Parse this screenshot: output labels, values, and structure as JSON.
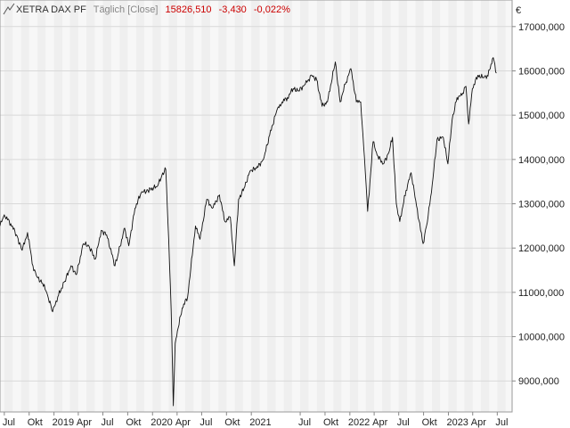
{
  "header": {
    "symbol": "XETRA DAX PF",
    "interval": "Täglich [Close]",
    "last": "15826,510",
    "change": "-3,430",
    "change_pct": "-0,022%"
  },
  "colors": {
    "background": "#ffffff",
    "band_dark": "#efefef",
    "band_light": "#f7f7f7",
    "grid": "#d9d9d9",
    "line": "#111111",
    "negative": "#cc0000",
    "muted_text": "#888888"
  },
  "chart_data": {
    "type": "line",
    "title": "XETRA DAX PF",
    "currency": "€",
    "ylim": [
      8300,
      17600
    ],
    "yticks": [
      9000,
      10000,
      11000,
      12000,
      13000,
      14000,
      15000,
      16000,
      17000
    ],
    "ytick_labels": [
      "9000,000",
      "10000,000",
      "11000,000",
      "12000,000",
      "13000,000",
      "14000,000",
      "15000,000",
      "16000,000",
      "17000,000"
    ],
    "xlim": [
      "2018-06-15",
      "2023-08-25"
    ],
    "month_bands": [
      "2018-07-01",
      "2018-08-01",
      "2018-09-01",
      "2018-10-01",
      "2018-11-01",
      "2018-12-01",
      "2019-01-01",
      "2019-02-01",
      "2019-03-01",
      "2019-04-01",
      "2019-05-01",
      "2019-06-01",
      "2019-07-01",
      "2019-08-01",
      "2019-09-01",
      "2019-10-01",
      "2019-11-01",
      "2019-12-01",
      "2020-01-01",
      "2020-02-01",
      "2020-03-01",
      "2020-04-01",
      "2020-05-01",
      "2020-06-01",
      "2020-07-01",
      "2020-08-01",
      "2020-09-01",
      "2020-10-01",
      "2020-11-01",
      "2020-12-01",
      "2021-01-01",
      "2021-02-01",
      "2021-03-01",
      "2021-04-01",
      "2021-05-01",
      "2021-06-01",
      "2021-07-01",
      "2021-08-01",
      "2021-09-01",
      "2021-10-01",
      "2021-11-01",
      "2021-12-01",
      "2022-01-01",
      "2022-02-01",
      "2022-03-01",
      "2022-04-01",
      "2022-05-01",
      "2022-06-01",
      "2022-07-01",
      "2022-08-01",
      "2022-09-01",
      "2022-10-01",
      "2022-11-01",
      "2022-12-01",
      "2023-01-01",
      "2023-02-01",
      "2023-03-01",
      "2023-04-01",
      "2023-05-01",
      "2023-06-01",
      "2023-07-01",
      "2023-08-01"
    ],
    "xticks": [
      {
        "label": "Jul",
        "date": "2018-07-01"
      },
      {
        "label": "Okt",
        "date": "2018-10-01"
      },
      {
        "label": "2019",
        "date": "2019-01-01"
      },
      {
        "label": "Apr",
        "date": "2019-04-01"
      },
      {
        "label": "Jul",
        "date": "2019-07-01"
      },
      {
        "label": "Okt",
        "date": "2019-10-01"
      },
      {
        "label": "2020",
        "date": "2020-01-01"
      },
      {
        "label": "Apr",
        "date": "2020-04-01"
      },
      {
        "label": "Jul",
        "date": "2020-07-01"
      },
      {
        "label": "Okt",
        "date": "2020-10-01"
      },
      {
        "label": "2021",
        "date": "2021-01-01"
      },
      {
        "label": "Jul",
        "date": "2021-07-01"
      },
      {
        "label": "Okt",
        "date": "2021-10-01"
      },
      {
        "label": "2022",
        "date": "2022-01-01"
      },
      {
        "label": "Apr",
        "date": "2022-04-01"
      },
      {
        "label": "Jul",
        "date": "2022-07-01"
      },
      {
        "label": "Okt",
        "date": "2022-10-01"
      },
      {
        "label": "2023",
        "date": "2023-01-01"
      },
      {
        "label": "Apr",
        "date": "2023-04-01"
      },
      {
        "label": "Jul",
        "date": "2023-07-01"
      }
    ],
    "series": [
      {
        "x": [
          "2018-06-15",
          "2018-07-01",
          "2018-07-25",
          "2018-08-15",
          "2018-09-05",
          "2018-09-25",
          "2018-10-15",
          "2018-10-30",
          "2018-11-20",
          "2018-12-05",
          "2018-12-27",
          "2019-01-15",
          "2019-02-10",
          "2019-03-05",
          "2019-03-25",
          "2019-04-20",
          "2019-05-10",
          "2019-06-03",
          "2019-06-25",
          "2019-07-15",
          "2019-08-15",
          "2019-08-28",
          "2019-09-20",
          "2019-10-05",
          "2019-10-28",
          "2019-11-20",
          "2019-12-15",
          "2020-01-20",
          "2020-02-05",
          "2020-02-19",
          "2020-03-01",
          "2020-03-10",
          "2020-03-18",
          "2020-03-25",
          "2020-04-05",
          "2020-04-20",
          "2020-05-10",
          "2020-06-08",
          "2020-06-25",
          "2020-07-20",
          "2020-08-10",
          "2020-09-05",
          "2020-09-25",
          "2020-10-15",
          "2020-10-30",
          "2020-11-15",
          "2020-12-05",
          "2020-12-28",
          "2021-01-20",
          "2021-02-15",
          "2021-03-10",
          "2021-04-05",
          "2021-04-25",
          "2021-05-15",
          "2021-06-05",
          "2021-06-25",
          "2021-07-20",
          "2021-08-13",
          "2021-08-31",
          "2021-09-20",
          "2021-10-10",
          "2021-11-08",
          "2021-11-26",
          "2021-12-15",
          "2022-01-05",
          "2022-01-25",
          "2022-02-10",
          "2022-02-24",
          "2022-03-08",
          "2022-03-28",
          "2022-04-12",
          "2022-05-05",
          "2022-05-25",
          "2022-06-08",
          "2022-06-22",
          "2022-07-05",
          "2022-07-28",
          "2022-08-16",
          "2022-09-05",
          "2022-09-29",
          "2022-10-12",
          "2022-10-30",
          "2022-11-20",
          "2022-12-13",
          "2022-12-30",
          "2023-01-15",
          "2023-02-02",
          "2023-02-20",
          "2023-03-07",
          "2023-03-17",
          "2023-03-31",
          "2023-04-20",
          "2023-05-10",
          "2023-05-25",
          "2023-06-05",
          "2023-06-16",
          "2023-06-28"
        ],
        "y": [
          12500,
          12750,
          12550,
          12300,
          11950,
          12350,
          11600,
          11350,
          11200,
          11000,
          10560,
          10900,
          11250,
          11600,
          11400,
          12100,
          12050,
          11750,
          12400,
          12300,
          11600,
          11900,
          12450,
          12050,
          12900,
          13250,
          13300,
          13400,
          13650,
          13780,
          12200,
          10600,
          8441,
          9850,
          10200,
          10650,
          10900,
          12500,
          12200,
          13100,
          12900,
          13200,
          12600,
          12700,
          11600,
          13100,
          13350,
          13750,
          13800,
          14000,
          14550,
          15100,
          15300,
          15400,
          15600,
          15550,
          15700,
          15900,
          15800,
          15200,
          15300,
          16200,
          15300,
          15700,
          16050,
          15300,
          15300,
          14050,
          12830,
          14400,
          14100,
          13900,
          14150,
          14500,
          13000,
          12600,
          13300,
          13700,
          12950,
          12100,
          12500,
          13250,
          14450,
          14500,
          13900,
          14900,
          15400,
          15450,
          15650,
          14800,
          15600,
          15900,
          15850,
          15900,
          16050,
          16300,
          15950
        ]
      }
    ]
  }
}
